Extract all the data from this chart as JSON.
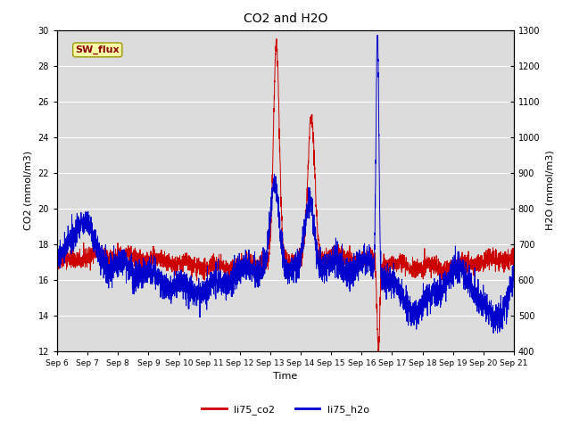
{
  "title": "CO2 and H2O",
  "xlabel": "Time",
  "ylabel_left": "CO2 (mmol/m3)",
  "ylabel_right": "H2O (mmol/m3)",
  "ylim_left": [
    12,
    30
  ],
  "ylim_right": [
    400,
    1300
  ],
  "x_tick_labels": [
    "Sep 6",
    "Sep 7",
    "Sep 8",
    "Sep 9",
    "Sep 10",
    "Sep 11",
    "Sep 12",
    "Sep 13",
    "Sep 14",
    "Sep 15",
    "Sep 16",
    "Sep 17",
    "Sep 18",
    "Sep 19",
    "Sep 20",
    "Sep 21"
  ],
  "annotation_text": "SW_flux",
  "annotation_color": "#8B0000",
  "annotation_bg": "#FFFFAA",
  "line_co2_color": "#CC0000",
  "line_h2o_color": "#0000CC",
  "background_color": "#DCDCDC",
  "legend_co2": "li75_co2",
  "legend_h2o": "li75_h2o",
  "n_points": 3600,
  "days": 15
}
